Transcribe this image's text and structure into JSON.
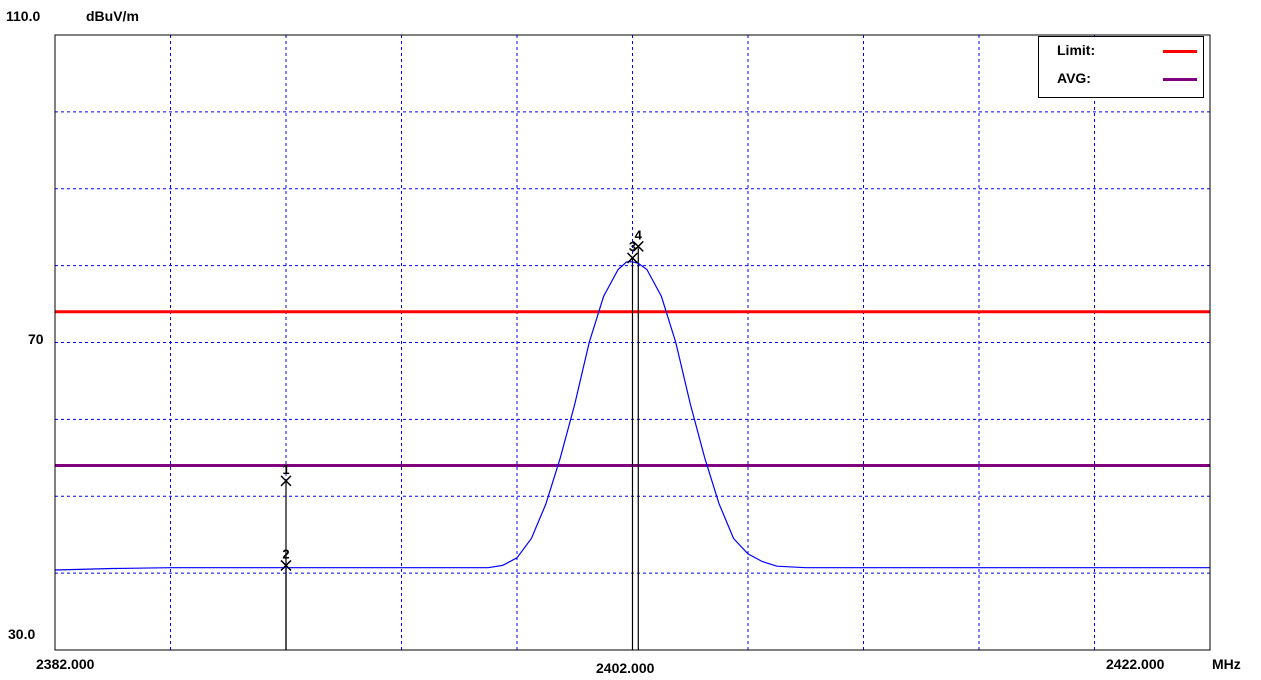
{
  "chart_data": {
    "type": "line",
    "y_unit": "dBuV/m",
    "x_unit": "MHz",
    "ylim": [
      30.0,
      110.0
    ],
    "xlim": [
      2382.0,
      2422.0
    ],
    "y_tick_labels": [
      "110.0",
      "70",
      "30.0"
    ],
    "x_tick_labels": [
      "2382.000",
      "2402.000",
      "2422.000"
    ],
    "grid": true,
    "grid_style": "dashed",
    "grid_color": "#0000ff",
    "legend": {
      "placement": "top-right",
      "entries": [
        {
          "label": "Limit:",
          "color": "#ff0000"
        },
        {
          "label": "AVG:",
          "color": "#800080"
        }
      ]
    },
    "series": [
      {
        "color": "#0000ff",
        "x": [
          2382.0,
          2384.0,
          2386.0,
          2390.0,
          2395.0,
          2397.0,
          2397.5,
          2398.0,
          2398.5,
          2399.0,
          2399.5,
          2400.0,
          2400.5,
          2401.0,
          2401.5,
          2401.8,
          2402.0,
          2402.2,
          2402.5,
          2403.0,
          2403.5,
          2404.0,
          2404.5,
          2405.0,
          2405.5,
          2406.0,
          2406.5,
          2407.0,
          2408.0,
          2410.0,
          2415.0,
          2420.0,
          2422.0
        ],
        "y": [
          40.4,
          40.6,
          40.7,
          40.7,
          40.7,
          40.7,
          41.0,
          42.0,
          44.5,
          49.0,
          55.0,
          62.0,
          70.0,
          76.0,
          79.5,
          80.5,
          80.5,
          80.3,
          79.5,
          76.0,
          70.0,
          62.0,
          55.0,
          49.0,
          44.5,
          42.5,
          41.5,
          40.9,
          40.7,
          40.7,
          40.7,
          40.7,
          40.7
        ]
      }
    ],
    "reference_lines": [
      {
        "legend_label": "Limit:",
        "y": 74.0,
        "color": "#ff0000"
      },
      {
        "legend_label": "AVG:",
        "y": 54.0,
        "color": "#800080"
      }
    ],
    "markers": [
      {
        "label": "1",
        "x": 2390.0,
        "y": 52.0
      },
      {
        "label": "2",
        "x": 2390.0,
        "y": 41.0
      },
      {
        "label": "3",
        "x": 2402.0,
        "y": 81.0
      },
      {
        "label": "4",
        "x": 2402.2,
        "y": 82.5
      }
    ]
  }
}
